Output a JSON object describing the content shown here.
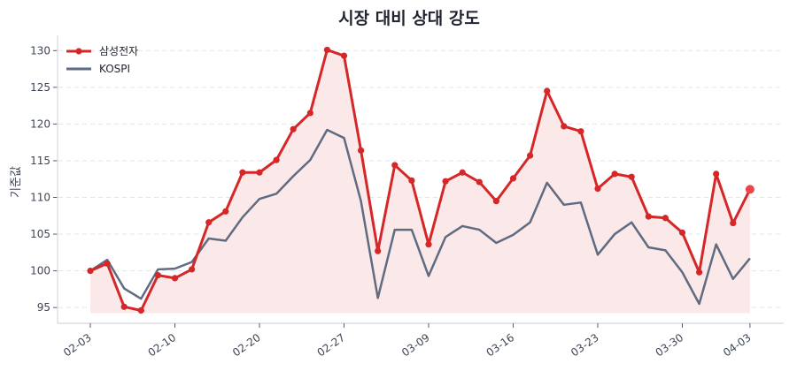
{
  "chart_data": {
    "type": "line",
    "title": "시장 대비 상대 강도",
    "xlabel": "",
    "ylabel": "기준값",
    "ylim": [
      93,
      132
    ],
    "yticks": [
      95,
      100,
      105,
      110,
      115,
      120,
      125,
      130
    ],
    "xtick_labels": [
      "02-03",
      "02-10",
      "02-20",
      "02-27",
      "03-09",
      "03-16",
      "03-23",
      "03-30",
      "04-03"
    ],
    "xtick_indices": [
      0,
      5,
      10,
      15,
      20,
      25,
      30,
      35,
      39
    ],
    "grid": "horizontal-dashed",
    "legend_position": "upper left",
    "fill_between": {
      "series": "삼성전자",
      "baseline": 94.6,
      "color": "#fbe9ea"
    },
    "series": [
      {
        "name": "삼성전자",
        "color": "#d62728",
        "marker": "circle",
        "values": [
          100.0,
          101.0,
          95.1,
          94.6,
          99.4,
          99.0,
          100.2,
          106.6,
          108.1,
          113.4,
          113.4,
          115.1,
          119.3,
          121.5,
          130.1,
          129.3,
          116.4,
          102.7,
          114.4,
          112.3,
          103.6,
          112.2,
          113.4,
          112.1,
          109.5,
          112.6,
          115.7,
          124.5,
          119.7,
          119.0,
          111.2,
          113.2,
          112.8,
          107.4,
          107.2,
          105.2,
          99.8,
          113.2,
          106.5,
          111.1
        ]
      },
      {
        "name": "KOSPI",
        "color": "#5f6b80",
        "marker": "none",
        "values": [
          100.0,
          101.5,
          97.6,
          96.2,
          100.2,
          100.3,
          101.2,
          104.4,
          104.1,
          107.3,
          109.8,
          110.5,
          112.9,
          115.1,
          119.2,
          118.1,
          109.5,
          96.3,
          105.6,
          105.6,
          99.3,
          104.6,
          106.1,
          105.6,
          103.8,
          104.9,
          106.6,
          112.0,
          109.0,
          109.3,
          102.2,
          105.0,
          106.6,
          103.2,
          102.8,
          99.8,
          95.5,
          103.6,
          98.9,
          101.7
        ]
      }
    ]
  }
}
